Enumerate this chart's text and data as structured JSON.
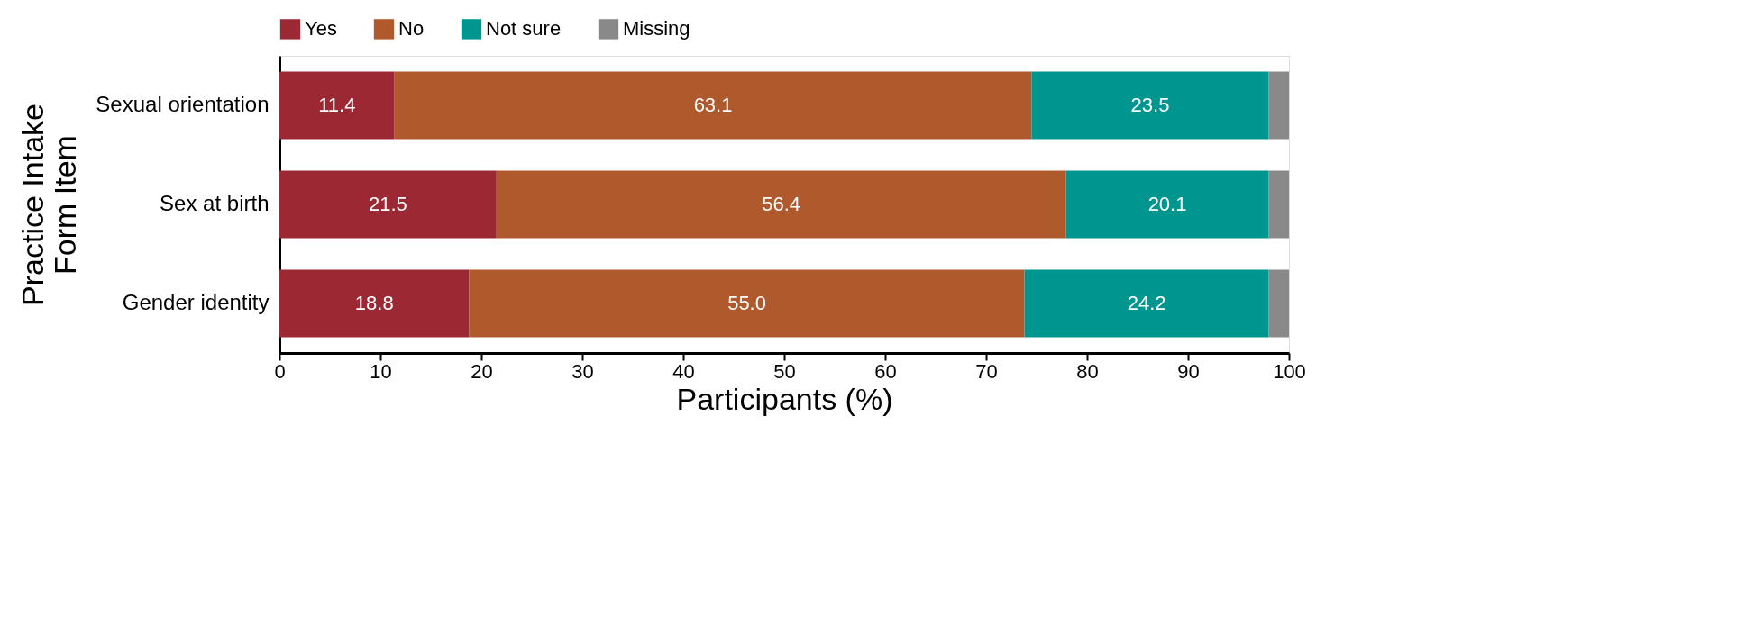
{
  "chart_data": {
    "type": "bar",
    "orientation": "horizontal",
    "stacked": true,
    "categories": [
      "Sexual orientation",
      "Sex at birth",
      "Gender identity"
    ],
    "series": [
      {
        "name": "Yes",
        "color": "#9b2832",
        "values": [
          11.4,
          21.5,
          18.8
        ],
        "value_labels": [
          "11.4",
          "21.5",
          "18.8"
        ]
      },
      {
        "name": "No",
        "color": "#b0592c",
        "values": [
          63.1,
          56.4,
          55.0
        ],
        "value_labels": [
          "63.1",
          "56.4",
          "55.0"
        ]
      },
      {
        "name": "Not sure",
        "color": "#009690",
        "values": [
          23.5,
          20.1,
          24.2
        ],
        "value_labels": [
          "23.5",
          "20.1",
          "24.2"
        ]
      },
      {
        "name": "Missing",
        "color": "#898989",
        "values": [
          2.0,
          2.0,
          2.0
        ],
        "value_labels": [
          null,
          null,
          null
        ]
      }
    ],
    "xlim": [
      0,
      100
    ],
    "xticks": [
      0,
      10,
      20,
      30,
      40,
      50,
      60,
      70,
      80,
      90,
      100
    ],
    "xlabel": "Participants (%)",
    "ylabel": "Practice Intake Form Item",
    "legend": "top",
    "grid": false
  }
}
